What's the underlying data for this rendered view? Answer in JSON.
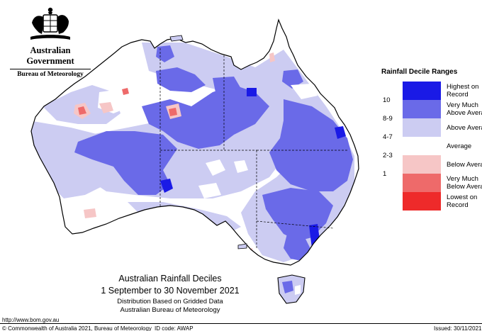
{
  "header": {
    "government": "Australian Government",
    "bureau": "Bureau of Meteorology"
  },
  "legend": {
    "title": "Rainfall Decile Ranges",
    "items": [
      {
        "label_lines": [
          "Highest on",
          "Record"
        ],
        "color": "#1a1ae6"
      },
      {
        "label_lines": [
          "Very Much",
          "Above Average"
        ],
        "color": "#6a6ae8"
      },
      {
        "label_lines": [
          "Above Average"
        ],
        "color": "#ccccf2"
      },
      {
        "label_lines": [
          "Average"
        ],
        "color": "#ffffff"
      },
      {
        "label_lines": [
          "Below Average"
        ],
        "color": "#f6c6c6"
      },
      {
        "label_lines": [
          "Very Much",
          "Below Average"
        ],
        "color": "#ee6a6a"
      },
      {
        "label_lines": [
          "Lowest on",
          "Record"
        ],
        "color": "#ee2a2a"
      }
    ],
    "ticks": [
      "10",
      "8-9",
      "4-7",
      "2-3",
      "1"
    ]
  },
  "caption": {
    "title": "Australian Rainfall Deciles",
    "range": "1 September to 30 November 2021",
    "line1": "Distribution Based on Gridded Data",
    "line2": "Australian Bureau of Meteorology"
  },
  "footer": {
    "url": "http://www.bom.gov.au",
    "copyright": "© Commonwealth of Australia 2021, Bureau of Meteorology",
    "id_code": "ID code: AWAP",
    "issued": "Issued: 30/11/2021"
  },
  "map": {
    "colors": {
      "record_high": "#1a1ae6",
      "very_much_above": "#6a6ae8",
      "above": "#ccccf2",
      "average": "#ffffff",
      "below": "#f6c6c6",
      "very_much_below": "#ee6a6a",
      "record_low": "#ee2a2a"
    }
  }
}
